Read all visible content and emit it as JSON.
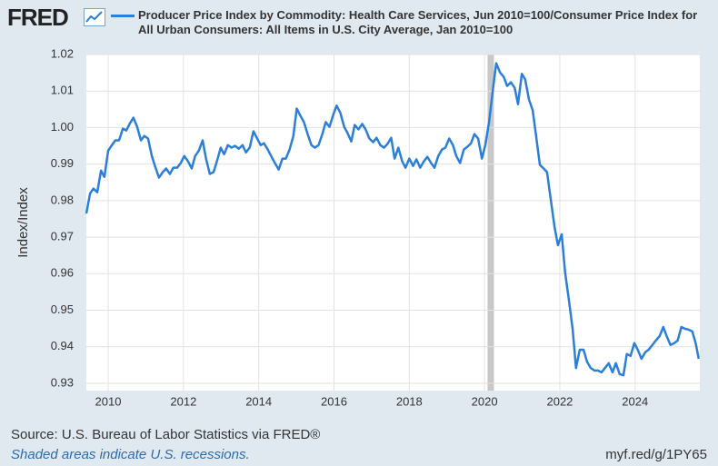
{
  "logo": "FRED",
  "source": "Source: U.S. Bureau of Labor Statistics via FRED®",
  "recession_note": "Shaded areas indicate U.S. recessions.",
  "link": "myf.red/g/1PY65",
  "chart_data": {
    "type": "line",
    "y_label": "Index/Index",
    "xlim": [
      2009.42,
      2025.72
    ],
    "xticks": [
      2010,
      2012,
      2014,
      2016,
      2018,
      2020,
      2022,
      2024
    ],
    "ylim": [
      0.928,
      1.02
    ],
    "yticks": [
      0.93,
      0.94,
      0.95,
      0.96,
      0.97,
      0.98,
      0.99,
      {
        "value": 1,
        "label": "1.00"
      },
      1.01,
      1.02
    ],
    "grid": true,
    "recessions": [
      {
        "start": 2020.08,
        "end": 2020.25
      }
    ],
    "recession_color": "#c8c8c8",
    "x": [
      2009.42,
      2009.52,
      2009.61,
      2009.71,
      2009.81,
      2009.9,
      2010.0,
      2010.1,
      2010.19,
      2010.29,
      2010.39,
      2010.48,
      2010.58,
      2010.67,
      2010.77,
      2010.87,
      2010.96,
      2011.06,
      2011.16,
      2011.25,
      2011.35,
      2011.45,
      2011.54,
      2011.64,
      2011.73,
      2011.83,
      2011.93,
      2012.02,
      2012.12,
      2012.22,
      2012.31,
      2012.41,
      2012.51,
      2012.6,
      2012.7,
      2012.8,
      2012.89,
      2012.99,
      2013.08,
      2013.18,
      2013.28,
      2013.37,
      2013.47,
      2013.57,
      2013.66,
      2013.76,
      2013.86,
      2013.95,
      2014.05,
      2014.14,
      2014.24,
      2014.34,
      2014.43,
      2014.53,
      2014.63,
      2014.72,
      2014.82,
      2014.92,
      2015.01,
      2015.11,
      2015.2,
      2015.3,
      2015.4,
      2015.49,
      2015.59,
      2015.69,
      2015.78,
      2015.88,
      2015.98,
      2016.07,
      2016.17,
      2016.27,
      2016.36,
      2016.46,
      2016.55,
      2016.65,
      2016.75,
      2016.84,
      2016.94,
      2017.04,
      2017.13,
      2017.23,
      2017.33,
      2017.42,
      2017.52,
      2017.61,
      2017.71,
      2017.81,
      2017.9,
      2018.0,
      2018.1,
      2018.19,
      2018.29,
      2018.39,
      2018.48,
      2018.58,
      2018.67,
      2018.77,
      2018.87,
      2018.96,
      2019.06,
      2019.16,
      2019.25,
      2019.35,
      2019.45,
      2019.54,
      2019.64,
      2019.73,
      2019.83,
      2019.93,
      2020.02,
      2020.12,
      2020.22,
      2020.31,
      2020.41,
      2020.51,
      2020.6,
      2020.7,
      2020.8,
      2020.89,
      2020.99,
      2021.08,
      2021.18,
      2021.28,
      2021.37,
      2021.47,
      2021.57,
      2021.66,
      2021.76,
      2021.86,
      2021.95,
      2022.05,
      2022.14,
      2022.24,
      2022.34,
      2022.43,
      2022.53,
      2022.63,
      2022.72,
      2022.82,
      2022.92,
      2023.01,
      2023.11,
      2023.2,
      2023.3,
      2023.4,
      2023.49,
      2023.59,
      2023.69,
      2023.78,
      2023.88,
      2023.98,
      2024.07,
      2024.17,
      2024.27,
      2024.36,
      2024.46,
      2024.55,
      2024.65,
      2024.75,
      2024.84,
      2024.94,
      2025.04,
      2025.13,
      2025.23,
      2025.33,
      2025.42,
      2025.52,
      2025.61,
      2025.69
    ],
    "series": [
      {
        "name": "Producer Price Index by Commodity: Health Care Services, Jun 2010=100/Consumer Price Index for All Urban Consumers: All Items in U.S. City Average, Jan 2010=100",
        "color": "#2b7fd8",
        "values": [
          0.9765,
          0.982,
          0.9833,
          0.9823,
          0.9882,
          0.9865,
          0.9937,
          0.9952,
          0.9965,
          0.9965,
          0.9997,
          0.9992,
          1.0012,
          1.0027,
          1.0002,
          0.9965,
          0.9977,
          0.997,
          0.9922,
          0.9893,
          0.9863,
          0.9878,
          0.9888,
          0.9873,
          0.989,
          0.989,
          0.9903,
          0.9922,
          0.9908,
          0.9888,
          0.9922,
          0.9937,
          0.9965,
          0.9915,
          0.9873,
          0.9878,
          0.9908,
          0.9945,
          0.9927,
          0.9952,
          0.9945,
          0.995,
          0.9942,
          0.9952,
          0.9932,
          0.9945,
          0.999,
          0.9972,
          0.9952,
          0.9957,
          0.994,
          0.992,
          0.9903,
          0.9885,
          0.9915,
          0.9915,
          0.994,
          0.9977,
          1.0052,
          1.0032,
          1.0015,
          0.9982,
          0.9952,
          0.9945,
          0.9952,
          0.9982,
          1.0015,
          1.0002,
          1.0035,
          1.006,
          1.004,
          1.0002,
          0.9985,
          0.9962,
          1.0007,
          0.9995,
          1.001,
          0.9995,
          0.997,
          0.996,
          0.9972,
          0.9952,
          0.9945,
          0.9955,
          0.9972,
          0.9915,
          0.9945,
          0.9908,
          0.989,
          0.9915,
          0.9895,
          0.9913,
          0.989,
          0.9908,
          0.992,
          0.9903,
          0.989,
          0.9922,
          0.994,
          0.9945,
          0.997,
          0.9952,
          0.9922,
          0.9903,
          0.994,
          0.9947,
          0.9957,
          0.9982,
          0.997,
          0.9915,
          0.9952,
          1.0015,
          1.0102,
          1.0176,
          1.0151,
          1.0139,
          1.0114,
          1.0124,
          1.0109,
          1.0064,
          1.0147,
          1.0132,
          1.0077,
          1.0047,
          0.9977,
          0.9898,
          0.9888,
          0.9878,
          0.9803,
          0.9728,
          0.9678,
          0.9708,
          0.9604,
          0.9529,
          0.9449,
          0.9342,
          0.9392,
          0.9392,
          0.936,
          0.9342,
          0.9335,
          0.9335,
          0.933,
          0.9342,
          0.9355,
          0.933,
          0.9355,
          0.9325,
          0.9322,
          0.938,
          0.9375,
          0.941,
          0.9392,
          0.9367,
          0.9385,
          0.9392,
          0.9405,
          0.9417,
          0.9429,
          0.9454,
          0.9429,
          0.9405,
          0.941,
          0.9417,
          0.9454,
          0.9449,
          0.9447,
          0.9442,
          0.941,
          0.9367
        ]
      }
    ]
  }
}
